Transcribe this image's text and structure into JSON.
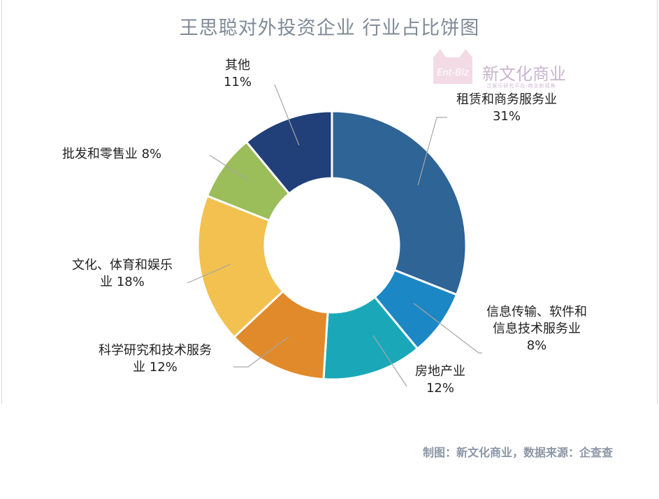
{
  "footer": "制图：新文化商业，数据来源：企查查",
  "watermark": {
    "brand": "新文化商业",
    "badge": "Ent-Biz",
    "tagline": "·泛娱乐研究平台·商业新视角·"
  },
  "chart_data": {
    "type": "pie",
    "donut": true,
    "title": "王思聪对外投资企业 行业占比饼图",
    "series": [
      {
        "label": "租赁和商务服务业",
        "value": 31,
        "label_text": "租赁和商务服务业\n31%",
        "color": "#2e6496"
      },
      {
        "label": "信息传输、软件和信息技术服务业",
        "value": 8,
        "label_text": "信息传输、软件和\n信息技术服务业\n8%",
        "color": "#1b87c4"
      },
      {
        "label": "房地产业",
        "value": 12,
        "label_text": "房地产业\n12%",
        "color": "#1aa8b9"
      },
      {
        "label": "科学研究和技术服务业",
        "value": 12,
        "label_text": "科学研究和技术服务\n业   12%",
        "color": "#e08a2b"
      },
      {
        "label": "文化、体育和娱乐业",
        "value": 18,
        "label_text": "文化、体育和娱乐\n业  18%",
        "color": "#f2c14f"
      },
      {
        "label": "批发和零售业",
        "value": 8,
        "label_text": "批发和零售业   8%",
        "color": "#9bbd5a"
      },
      {
        "label": "其他",
        "value": 11,
        "label_text": "其他\n11%",
        "color": "#213f78"
      }
    ]
  }
}
